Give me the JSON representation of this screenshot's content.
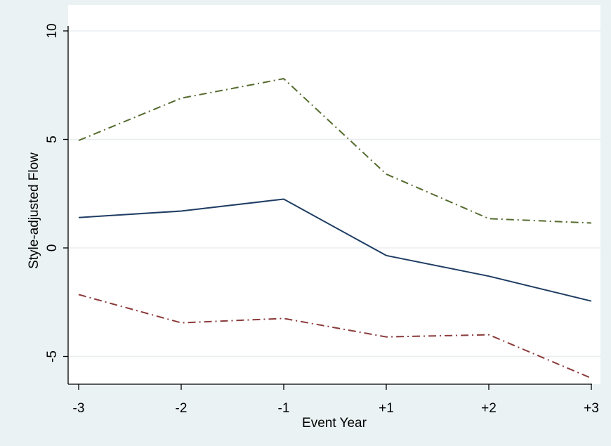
{
  "chart_data": {
    "type": "line",
    "title": "",
    "xlabel": "Event Year",
    "ylabel": "Style-adjusted Flow",
    "categories": [
      "-3",
      "-2",
      "-1",
      "+1",
      "+2",
      "+3"
    ],
    "ylim": [
      -6,
      10
    ],
    "yticks": [
      -5,
      0,
      5,
      10
    ],
    "ytick_labels": [
      "-5",
      "0",
      "5",
      "10"
    ],
    "grid": true,
    "legend": "none",
    "series": [
      {
        "values": [
          1.4,
          1.7,
          2.25,
          -0.35,
          -1.3,
          -2.45
        ],
        "color": "#1f3d63",
        "dash": "solid"
      },
      {
        "values": [
          4.95,
          6.9,
          7.8,
          3.4,
          1.35,
          1.15
        ],
        "color": "#556b2f",
        "dash": "dashdot"
      },
      {
        "values": [
          -2.15,
          -3.45,
          -3.25,
          -4.1,
          -4.0,
          -6.0
        ],
        "color": "#8b3a3a",
        "dash": "dashdot"
      }
    ]
  }
}
